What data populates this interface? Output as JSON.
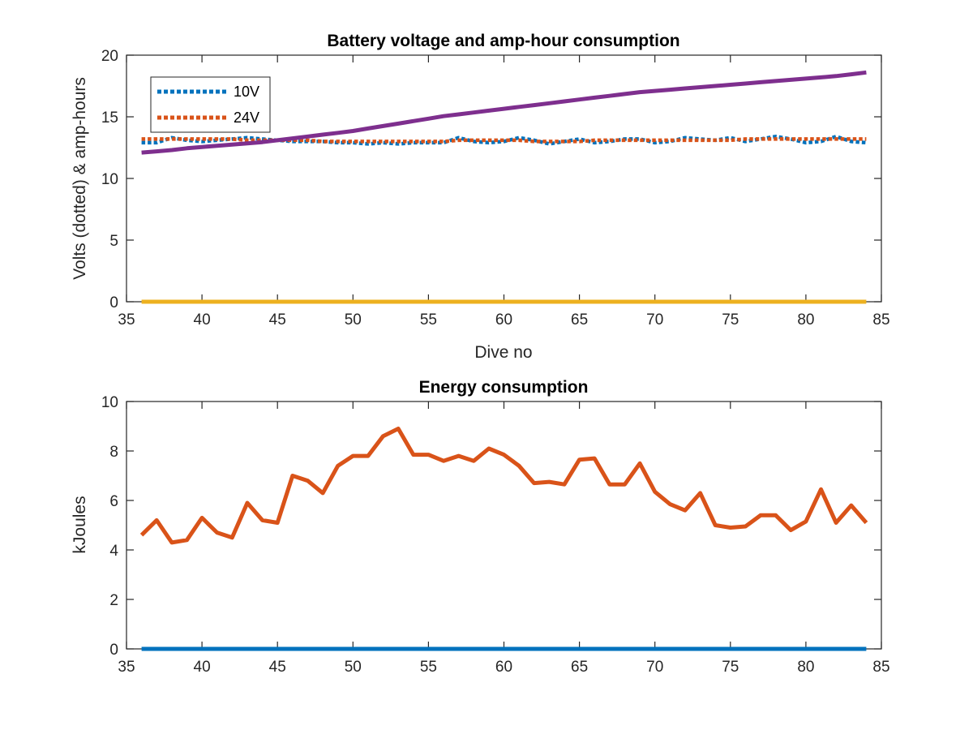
{
  "chart_data": [
    {
      "type": "line",
      "title": "Battery voltage and amp-hour consumption",
      "xlabel": "Dive no",
      "ylabel": "Volts (dotted) & amp-hours",
      "xlim": [
        35,
        85
      ],
      "ylim": [
        0,
        20
      ],
      "xticks": [
        "35",
        "40",
        "45",
        "50",
        "55",
        "60",
        "65",
        "70",
        "75",
        "80",
        "85"
      ],
      "yticks": [
        "0",
        "5",
        "10",
        "15",
        "20"
      ],
      "legend": {
        "position": "top-left",
        "entries": [
          "10V",
          "24V"
        ]
      },
      "x": [
        36,
        37,
        38,
        39,
        40,
        41,
        42,
        43,
        44,
        45,
        46,
        47,
        48,
        49,
        50,
        51,
        52,
        53,
        54,
        55,
        56,
        57,
        58,
        59,
        60,
        61,
        62,
        63,
        64,
        65,
        66,
        67,
        68,
        69,
        70,
        71,
        72,
        73,
        74,
        75,
        76,
        77,
        78,
        79,
        80,
        81,
        82,
        83,
        84
      ],
      "series": [
        {
          "name": "10V",
          "style": "dotted",
          "color": "#0072BD",
          "values": [
            12.9,
            12.9,
            13.3,
            13.1,
            13.0,
            13.1,
            13.2,
            13.3,
            13.2,
            13.1,
            13.0,
            13.0,
            13.0,
            12.9,
            12.9,
            12.8,
            12.9,
            12.8,
            12.9,
            12.9,
            12.9,
            13.3,
            13.0,
            12.9,
            13.0,
            13.3,
            13.1,
            12.8,
            13.0,
            13.2,
            12.9,
            13.0,
            13.2,
            13.2,
            12.9,
            13.0,
            13.3,
            13.2,
            13.1,
            13.3,
            13.0,
            13.2,
            13.4,
            13.2,
            12.9,
            13.0,
            13.4,
            13.0,
            12.9
          ]
        },
        {
          "name": "24V",
          "style": "dotted",
          "color": "#D95319",
          "values": [
            13.2,
            13.2,
            13.2,
            13.2,
            13.2,
            13.2,
            13.2,
            13.1,
            13.1,
            13.1,
            13.1,
            13.1,
            13.0,
            13.0,
            13.0,
            13.0,
            13.0,
            13.0,
            13.0,
            13.0,
            13.0,
            13.1,
            13.1,
            13.1,
            13.1,
            13.1,
            13.0,
            13.0,
            13.0,
            13.0,
            13.1,
            13.1,
            13.1,
            13.1,
            13.1,
            13.1,
            13.1,
            13.1,
            13.1,
            13.1,
            13.2,
            13.2,
            13.2,
            13.2,
            13.2,
            13.2,
            13.2,
            13.2,
            13.2
          ]
        },
        {
          "style": "solid",
          "color": "#EDB120",
          "values": [
            0,
            0,
            0,
            0,
            0,
            0,
            0,
            0,
            0,
            0,
            0,
            0,
            0,
            0,
            0,
            0,
            0,
            0,
            0,
            0,
            0,
            0,
            0,
            0,
            0,
            0,
            0,
            0,
            0,
            0,
            0,
            0,
            0,
            0,
            0,
            0,
            0,
            0,
            0,
            0,
            0,
            0,
            0,
            0,
            0,
            0,
            0,
            0,
            0
          ]
        },
        {
          "style": "solid",
          "color": "#7E2F8E",
          "values": [
            12.1,
            12.2,
            12.3,
            12.45,
            12.55,
            12.65,
            12.75,
            12.85,
            12.95,
            13.1,
            13.25,
            13.4,
            13.55,
            13.7,
            13.85,
            14.05,
            14.25,
            14.45,
            14.65,
            14.85,
            15.05,
            15.2,
            15.35,
            15.5,
            15.65,
            15.8,
            15.95,
            16.1,
            16.25,
            16.4,
            16.55,
            16.7,
            16.85,
            17.0,
            17.1,
            17.2,
            17.3,
            17.4,
            17.5,
            17.6,
            17.7,
            17.8,
            17.9,
            18.0,
            18.1,
            18.2,
            18.3,
            18.45,
            18.6
          ]
        }
      ]
    },
    {
      "type": "line",
      "title": "Energy consumption",
      "xlabel": "",
      "ylabel": "kJoules",
      "xlim": [
        35,
        85
      ],
      "ylim": [
        0,
        10
      ],
      "xticks": [
        "35",
        "40",
        "45",
        "50",
        "55",
        "60",
        "65",
        "70",
        "75",
        "80",
        "85"
      ],
      "yticks": [
        "0",
        "2",
        "4",
        "6",
        "8",
        "10"
      ],
      "x": [
        36,
        37,
        38,
        39,
        40,
        41,
        42,
        43,
        44,
        45,
        46,
        47,
        48,
        49,
        50,
        51,
        52,
        53,
        54,
        55,
        56,
        57,
        58,
        59,
        60,
        61,
        62,
        63,
        64,
        65,
        66,
        67,
        68,
        69,
        70,
        71,
        72,
        73,
        74,
        75,
        76,
        77,
        78,
        79,
        80,
        81,
        82,
        83,
        84
      ],
      "series": [
        {
          "style": "solid",
          "color": "#0072BD",
          "values": [
            0,
            0,
            0,
            0,
            0,
            0,
            0,
            0,
            0,
            0,
            0,
            0,
            0,
            0,
            0,
            0,
            0,
            0,
            0,
            0,
            0,
            0,
            0,
            0,
            0,
            0,
            0,
            0,
            0,
            0,
            0,
            0,
            0,
            0,
            0,
            0,
            0,
            0,
            0,
            0,
            0,
            0,
            0,
            0,
            0,
            0,
            0,
            0,
            0
          ]
        },
        {
          "style": "solid",
          "color": "#D95319",
          "values": [
            4.6,
            5.2,
            4.3,
            4.4,
            5.3,
            4.7,
            4.5,
            5.9,
            5.2,
            5.1,
            7.0,
            6.8,
            6.3,
            7.4,
            7.8,
            7.8,
            8.6,
            8.9,
            7.85,
            7.85,
            7.6,
            7.8,
            7.6,
            8.1,
            7.85,
            7.4,
            6.7,
            6.75,
            6.65,
            7.65,
            7.7,
            6.65,
            6.65,
            7.5,
            6.35,
            5.85,
            5.6,
            6.3,
            5.0,
            4.9,
            4.95,
            5.4,
            5.4,
            4.8,
            5.15,
            6.45,
            5.1,
            5.8,
            5.1
          ]
        }
      ]
    }
  ]
}
